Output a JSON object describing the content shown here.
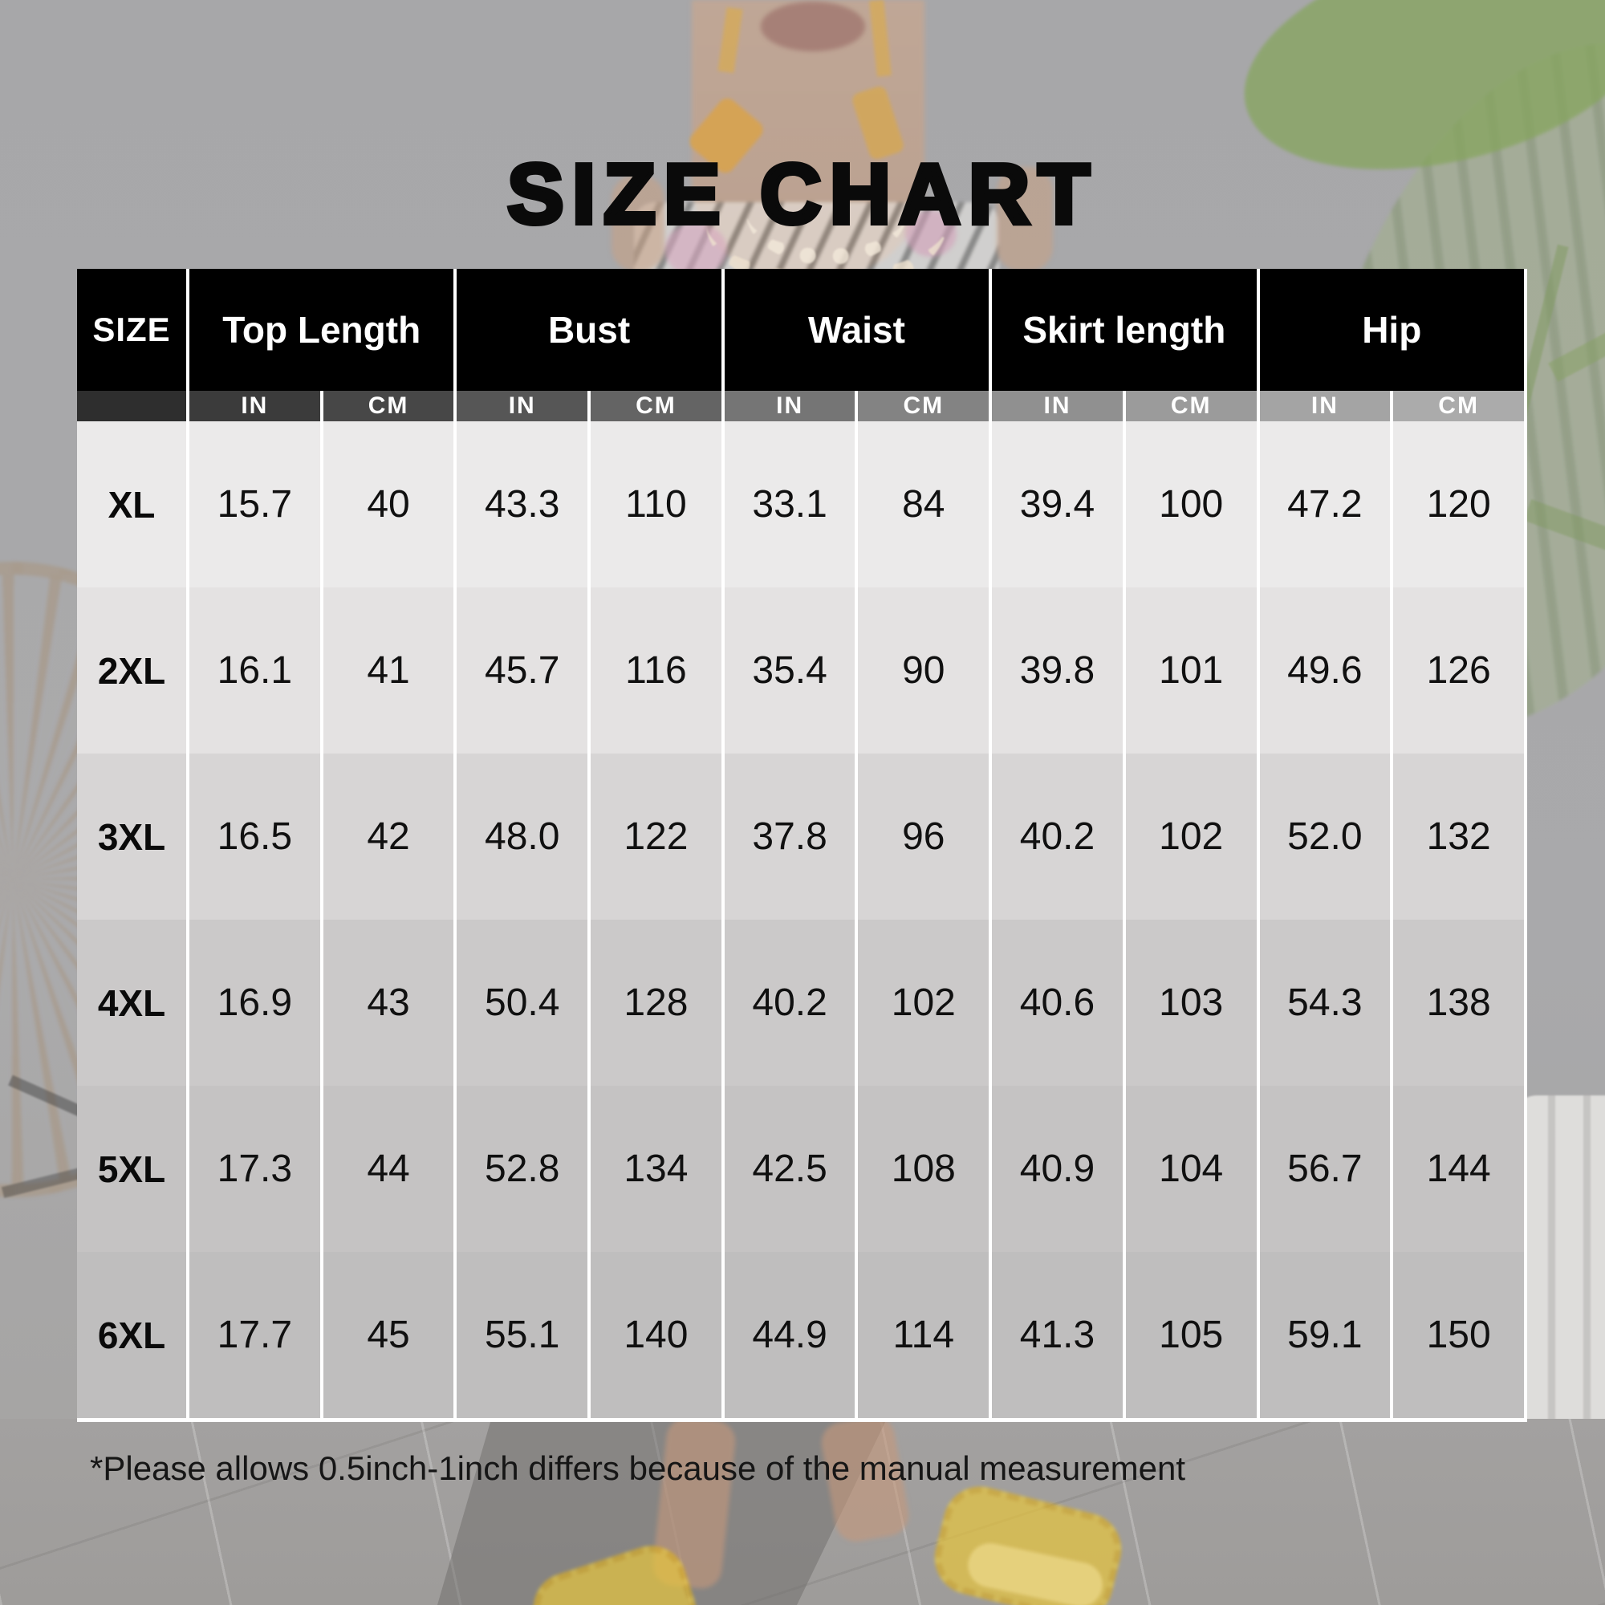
{
  "title": "SIZE CHART",
  "footnote": "*Please allows 0.5inch-1inch differs because of the manual measurement",
  "table": {
    "corner_label": "SIZE",
    "groups": [
      "Top Length",
      "Bust",
      "Waist",
      "Skirt length",
      "Hip"
    ],
    "units": [
      "IN",
      "CM"
    ],
    "rows": [
      {
        "size": "XL",
        "values": [
          "15.7",
          "40",
          "43.3",
          "110",
          "33.1",
          "84",
          "39.4",
          "100",
          "47.2",
          "120"
        ]
      },
      {
        "size": "2XL",
        "values": [
          "16.1",
          "41",
          "45.7",
          "116",
          "35.4",
          "90",
          "39.8",
          "101",
          "49.6",
          "126"
        ]
      },
      {
        "size": "3XL",
        "values": [
          "16.5",
          "42",
          "48.0",
          "122",
          "37.8",
          "96",
          "40.2",
          "102",
          "52.0",
          "132"
        ]
      },
      {
        "size": "4XL",
        "values": [
          "16.9",
          "43",
          "50.4",
          "128",
          "40.2",
          "102",
          "40.6",
          "103",
          "54.3",
          "138"
        ]
      },
      {
        "size": "5XL",
        "values": [
          "17.3",
          "44",
          "52.8",
          "134",
          "42.5",
          "108",
          "40.9",
          "104",
          "56.7",
          "144"
        ]
      },
      {
        "size": "6XL",
        "values": [
          "17.7",
          "45",
          "55.1",
          "140",
          "44.9",
          "114",
          "41.3",
          "105",
          "59.1",
          "150"
        ]
      }
    ]
  },
  "colors": {
    "header_bg": "#000000",
    "header_text": "#ffffff",
    "separator": "#ffffff",
    "row_bg_lightest": "#ebeaea",
    "row_bg_darkest": "#bfbebe",
    "unit_bar_left": "#2e2e2e",
    "unit_bar_right": "#ababab",
    "title_text": "#0a0a0a",
    "slipper_yellow": "#e8c63e",
    "plant_green": "#86a55e"
  },
  "chart_data": {
    "type": "table",
    "title": "SIZE CHART",
    "columns": [
      "SIZE",
      "Top Length (IN)",
      "Top Length (CM)",
      "Bust (IN)",
      "Bust (CM)",
      "Waist (IN)",
      "Waist (CM)",
      "Skirt length (IN)",
      "Skirt length (CM)",
      "Hip (IN)",
      "Hip (CM)"
    ],
    "rows": [
      [
        "XL",
        15.7,
        40,
        43.3,
        110,
        33.1,
        84,
        39.4,
        100,
        47.2,
        120
      ],
      [
        "2XL",
        16.1,
        41,
        45.7,
        116,
        35.4,
        90,
        39.8,
        101,
        49.6,
        126
      ],
      [
        "3XL",
        16.5,
        42,
        48.0,
        122,
        37.8,
        96,
        40.2,
        102,
        52.0,
        132
      ],
      [
        "4XL",
        16.9,
        43,
        50.4,
        128,
        40.2,
        102,
        40.6,
        103,
        54.3,
        138
      ],
      [
        "5XL",
        17.3,
        44,
        52.8,
        134,
        42.5,
        108,
        40.9,
        104,
        56.7,
        144
      ],
      [
        "6XL",
        17.7,
        45,
        55.1,
        140,
        44.9,
        114,
        41.3,
        105,
        59.1,
        150
      ]
    ],
    "footnote": "*Please allows 0.5inch-1inch differs because of the manual measurement"
  }
}
